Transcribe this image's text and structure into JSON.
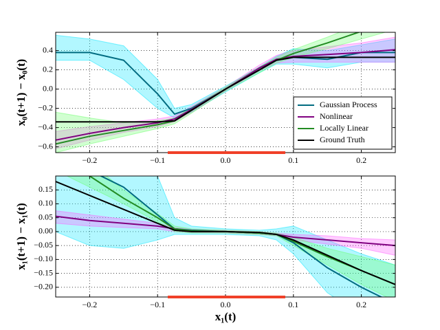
{
  "chart_data": [
    {
      "type": "line",
      "ylabel": "x₀(t+1) − x₀(t)",
      "x": [
        -0.25,
        -0.2,
        -0.15,
        -0.1,
        -0.075,
        -0.05,
        0,
        0.05,
        0.075,
        0.1,
        0.15,
        0.2,
        0.25
      ],
      "xlim": [
        -0.25,
        0.25
      ],
      "ylim": [
        -0.66,
        0.59
      ],
      "grid": true,
      "legend": "lower right",
      "xticks": [
        {
          "value": -0.2,
          "label": "−0.2"
        },
        {
          "value": -0.1,
          "label": "−0.1"
        },
        {
          "value": 0,
          "label": "0.0"
        },
        {
          "value": 0.1,
          "label": "0.1"
        },
        {
          "value": 0.2,
          "label": "0.2"
        }
      ],
      "yticks": [
        {
          "value": -0.6,
          "label": "−0.6"
        },
        {
          "value": -0.4,
          "label": "−0.4"
        },
        {
          "value": -0.2,
          "label": "−0.2"
        },
        {
          "value": 0,
          "label": "0.0"
        },
        {
          "value": 0.2,
          "label": "0.2"
        },
        {
          "value": 0.4,
          "label": "0.4"
        }
      ],
      "highlight": {
        "range": [
          -0.085,
          0.088
        ],
        "color": "#f04028"
      },
      "series": [
        {
          "name": "Gaussian Process",
          "color": "#006b80",
          "band_color": "#00e5ff",
          "values": [
            0.38,
            0.38,
            0.3,
            -0.05,
            -0.26,
            -0.2,
            0,
            0.2,
            0.3,
            0.33,
            0.31,
            0.38,
            0.38
          ],
          "lower": [
            0.3,
            0.3,
            0.1,
            -0.2,
            -0.3,
            -0.24,
            -0.03,
            0.17,
            0.26,
            0.26,
            0.22,
            0.28,
            0.28
          ],
          "upper": [
            0.56,
            0.52,
            0.45,
            0.1,
            -0.2,
            -0.16,
            0.03,
            0.23,
            0.34,
            0.42,
            0.4,
            0.46,
            0.52
          ]
        },
        {
          "name": "Nonlinear",
          "color": "#800080",
          "band_color": "#ff5cff",
          "values": [
            -0.53,
            -0.46,
            -0.4,
            -0.35,
            -0.31,
            -0.21,
            0,
            0.22,
            0.31,
            0.34,
            0.36,
            0.38,
            0.41
          ],
          "lower": [
            -0.62,
            -0.53,
            -0.45,
            -0.39,
            -0.34,
            -0.24,
            -0.02,
            0.19,
            0.27,
            0.28,
            0.28,
            0.28,
            0.28
          ],
          "upper": [
            -0.44,
            -0.39,
            -0.35,
            -0.31,
            -0.28,
            -0.18,
            0.02,
            0.25,
            0.35,
            0.4,
            0.44,
            0.48,
            0.54
          ]
        },
        {
          "name": "Locally Linear",
          "color": "#228b22",
          "band_color": "#66ff66",
          "values": [
            -0.57,
            -0.49,
            -0.43,
            -0.37,
            -0.33,
            -0.22,
            0,
            0.2,
            0.3,
            0.37,
            0.48,
            0.6,
            0.72
          ],
          "lower": [
            -0.66,
            -0.57,
            -0.49,
            -0.41,
            -0.36,
            -0.25,
            -0.02,
            0.17,
            0.27,
            0.33,
            0.42,
            0.52,
            0.62
          ],
          "upper": [
            -0.24,
            -0.3,
            -0.35,
            -0.33,
            -0.3,
            -0.19,
            0.02,
            0.23,
            0.33,
            0.41,
            0.54,
            0.68,
            0.82
          ]
        },
        {
          "name": "Ground Truth",
          "color": "#000000",
          "values": [
            -0.34,
            -0.34,
            -0.34,
            -0.34,
            -0.33,
            -0.22,
            0,
            0.2,
            0.3,
            0.33,
            0.33,
            0.33,
            0.33
          ]
        }
      ]
    },
    {
      "type": "line",
      "ylabel": "x₁(t+1) − x₁(t)",
      "xlabel": "x₁(t)",
      "x": [
        -0.25,
        -0.2,
        -0.15,
        -0.1,
        -0.075,
        -0.05,
        0,
        0.05,
        0.075,
        0.1,
        0.15,
        0.2,
        0.25
      ],
      "xlim": [
        -0.25,
        0.25
      ],
      "ylim": [
        -0.235,
        0.2
      ],
      "grid": true,
      "xticks": [
        {
          "value": -0.2,
          "label": "−0.2"
        },
        {
          "value": -0.1,
          "label": "−0.1"
        },
        {
          "value": 0,
          "label": "0.0"
        },
        {
          "value": 0.1,
          "label": "0.1"
        },
        {
          "value": 0.2,
          "label": "0.2"
        }
      ],
      "yticks": [
        {
          "value": -0.2,
          "label": "−0.20"
        },
        {
          "value": -0.15,
          "label": "−0.15"
        },
        {
          "value": -0.1,
          "label": "−0.10"
        },
        {
          "value": -0.05,
          "label": "−0.05"
        },
        {
          "value": 0,
          "label": "0.00"
        },
        {
          "value": 0.05,
          "label": "0.05"
        },
        {
          "value": 0.1,
          "label": "0.10"
        },
        {
          "value": 0.15,
          "label": "0.15"
        }
      ],
      "highlight": {
        "range": [
          -0.085,
          0.088
        ],
        "color": "#f04028"
      },
      "series": [
        {
          "color": "#006b80",
          "band_color": "#00e5ff",
          "values": [
            0.25,
            0.22,
            0.16,
            0.06,
            0.01,
            0.005,
            0,
            -0.005,
            -0.01,
            -0.04,
            -0.13,
            -0.2,
            -0.26
          ],
          "lower": [
            0.0,
            -0.05,
            -0.06,
            -0.03,
            -0.01,
            -0.01,
            -0.01,
            -0.015,
            -0.03,
            -0.08,
            -0.22,
            -0.3,
            -0.35
          ],
          "upper": [
            0.4,
            0.4,
            0.35,
            0.2,
            0.05,
            0.02,
            0.01,
            0.005,
            0.01,
            0.02,
            -0.03,
            -0.08,
            -0.12
          ]
        },
        {
          "color": "#800080",
          "band_color": "#ff5cff",
          "values": [
            0.055,
            0.04,
            0.03,
            0.02,
            0.01,
            0.003,
            0,
            -0.005,
            -0.01,
            -0.02,
            -0.03,
            -0.04,
            -0.05
          ],
          "lower": [
            0.03,
            0.02,
            0.015,
            0.01,
            0.0,
            -0.003,
            -0.005,
            -0.01,
            -0.015,
            -0.03,
            -0.045,
            -0.06,
            -0.085
          ],
          "upper": [
            0.075,
            0.06,
            0.045,
            0.03,
            0.015,
            0.008,
            0.005,
            0,
            -0.005,
            -0.01,
            -0.015,
            -0.025,
            -0.03
          ]
        },
        {
          "color": "#228b22",
          "band_color": "#66ff66",
          "values": [
            0.28,
            0.2,
            0.12,
            0.05,
            0.01,
            0.003,
            0,
            -0.005,
            -0.01,
            -0.035,
            -0.09,
            -0.14,
            -0.19
          ],
          "lower": [
            0.22,
            0.16,
            0.1,
            0.035,
            0.0,
            -0.005,
            -0.005,
            -0.01,
            -0.015,
            -0.05,
            -0.12,
            -0.19,
            -0.25
          ],
          "upper": [
            0.34,
            0.25,
            0.15,
            0.065,
            0.02,
            0.01,
            0.005,
            0,
            -0.005,
            -0.02,
            -0.06,
            -0.09,
            -0.12
          ]
        },
        {
          "color": "#000000",
          "values": [
            0.18,
            0.13,
            0.08,
            0.03,
            0.005,
            0,
            0,
            -0.003,
            -0.01,
            -0.03,
            -0.085,
            -0.14,
            -0.19
          ]
        }
      ]
    }
  ]
}
